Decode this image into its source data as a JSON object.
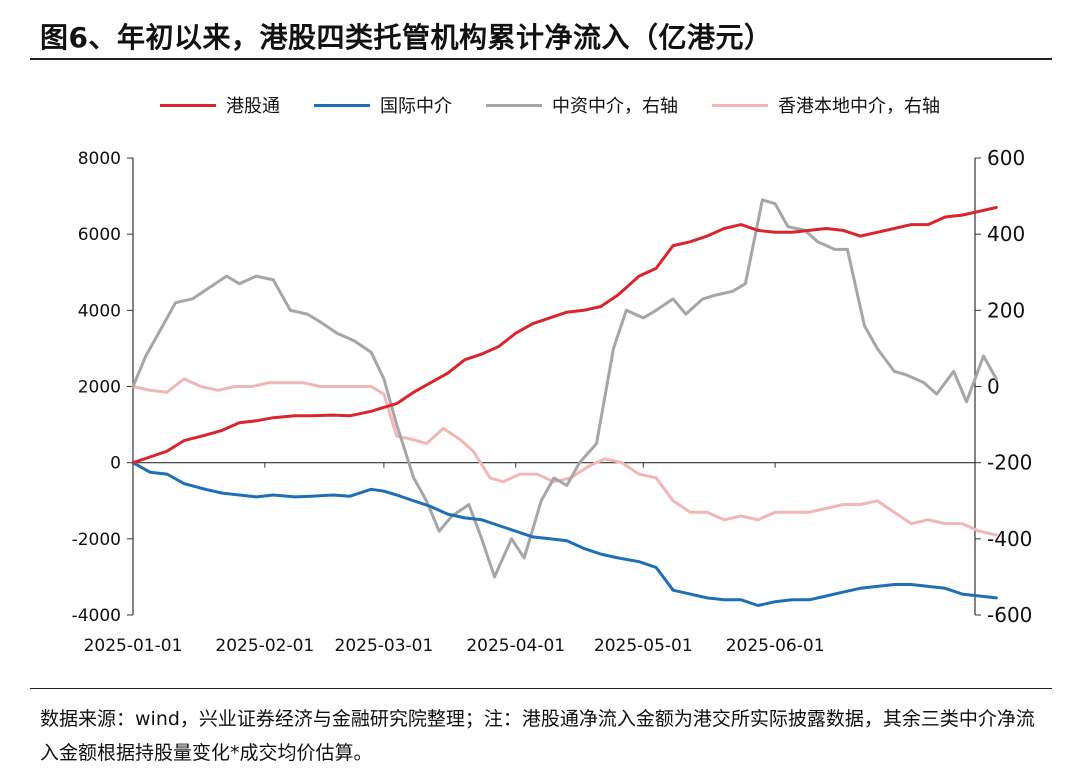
{
  "title": "图6、年初以来，港股四类托管机构累计净流入（亿港元）",
  "source": "数据来源：wind，兴业证券经济与金融研究院整理；注：港股通净流入金额为港交所实际披露数据，其余三类中介净流入金额根据持股量变化*成交均价估算。",
  "chart_data": {
    "type": "line",
    "title": "年初以来，港股四类托管机构累计净流入（亿港元）",
    "x_tick_labels": [
      "2025-01-01",
      "2025-02-01",
      "2025-03-01",
      "2025-04-01",
      "2025-05-01",
      "2025-06-01"
    ],
    "y_left": {
      "min": -4000,
      "max": 8000,
      "ticks": [
        8000,
        6000,
        4000,
        2000,
        0,
        -2000,
        -4000
      ]
    },
    "y_right": {
      "min": -600,
      "max": 600,
      "ticks": [
        600,
        400,
        200,
        0,
        -200,
        -400,
        -600
      ]
    },
    "grid": false,
    "legend_position": "top",
    "series": [
      {
        "name": "港股通",
        "axis": "left",
        "color": "#d9262c",
        "points": [
          [
            "2025-01-01",
            0
          ],
          [
            "2025-01-05",
            150
          ],
          [
            "2025-01-09",
            300
          ],
          [
            "2025-01-13",
            580
          ],
          [
            "2025-01-18",
            720
          ],
          [
            "2025-01-22",
            850
          ],
          [
            "2025-01-26",
            1050
          ],
          [
            "2025-01-30",
            1100
          ],
          [
            "2025-02-03",
            1180
          ],
          [
            "2025-02-08",
            1230
          ],
          [
            "2025-02-12",
            1230
          ],
          [
            "2025-02-17",
            1250
          ],
          [
            "2025-02-21",
            1230
          ],
          [
            "2025-02-26",
            1350
          ],
          [
            "2025-03-01",
            1450
          ],
          [
            "2025-03-04",
            1550
          ],
          [
            "2025-03-08",
            1850
          ],
          [
            "2025-03-12",
            2100
          ],
          [
            "2025-03-16",
            2350
          ],
          [
            "2025-03-20",
            2700
          ],
          [
            "2025-03-24",
            2850
          ],
          [
            "2025-03-28",
            3050
          ],
          [
            "2025-04-01",
            3400
          ],
          [
            "2025-04-05",
            3650
          ],
          [
            "2025-04-09",
            3800
          ],
          [
            "2025-04-13",
            3950
          ],
          [
            "2025-04-17",
            4000
          ],
          [
            "2025-04-21",
            4100
          ],
          [
            "2025-04-25",
            4400
          ],
          [
            "2025-04-30",
            4900
          ],
          [
            "2025-05-04",
            5100
          ],
          [
            "2025-05-08",
            5700
          ],
          [
            "2025-05-12",
            5800
          ],
          [
            "2025-05-16",
            5950
          ],
          [
            "2025-05-20",
            6150
          ],
          [
            "2025-05-24",
            6250
          ],
          [
            "2025-05-28",
            6100
          ],
          [
            "2025-06-01",
            6050
          ],
          [
            "2025-06-05",
            6050
          ],
          [
            "2025-06-09",
            6100
          ],
          [
            "2025-06-13",
            6150
          ],
          [
            "2025-06-17",
            6100
          ],
          [
            "2025-06-21",
            5950
          ],
          [
            "2025-06-25",
            6050
          ],
          [
            "2025-06-29",
            6150
          ],
          [
            "2025-07-03",
            6250
          ],
          [
            "2025-07-07",
            6250
          ],
          [
            "2025-07-11",
            6450
          ],
          [
            "2025-07-15",
            6500
          ],
          [
            "2025-07-19",
            6600
          ],
          [
            "2025-07-23",
            6700
          ]
        ]
      },
      {
        "name": "国际中介",
        "axis": "left",
        "color": "#1f6fb4",
        "points": [
          [
            "2025-01-01",
            0
          ],
          [
            "2025-01-05",
            -250
          ],
          [
            "2025-01-09",
            -300
          ],
          [
            "2025-01-13",
            -550
          ],
          [
            "2025-01-18",
            -700
          ],
          [
            "2025-01-22",
            -800
          ],
          [
            "2025-01-26",
            -850
          ],
          [
            "2025-01-30",
            -900
          ],
          [
            "2025-02-03",
            -850
          ],
          [
            "2025-02-08",
            -900
          ],
          [
            "2025-02-12",
            -880
          ],
          [
            "2025-02-17",
            -850
          ],
          [
            "2025-02-21",
            -880
          ],
          [
            "2025-02-26",
            -700
          ],
          [
            "2025-03-01",
            -750
          ],
          [
            "2025-03-04",
            -850
          ],
          [
            "2025-03-08",
            -1000
          ],
          [
            "2025-03-12",
            -1150
          ],
          [
            "2025-03-16",
            -1350
          ],
          [
            "2025-03-20",
            -1450
          ],
          [
            "2025-03-24",
            -1500
          ],
          [
            "2025-03-28",
            -1650
          ],
          [
            "2025-04-01",
            -1800
          ],
          [
            "2025-04-05",
            -1950
          ],
          [
            "2025-04-09",
            -2000
          ],
          [
            "2025-04-13",
            -2050
          ],
          [
            "2025-04-17",
            -2250
          ],
          [
            "2025-04-21",
            -2400
          ],
          [
            "2025-04-25",
            -2500
          ],
          [
            "2025-04-30",
            -2600
          ],
          [
            "2025-05-04",
            -2750
          ],
          [
            "2025-05-08",
            -3350
          ],
          [
            "2025-05-12",
            -3450
          ],
          [
            "2025-05-16",
            -3550
          ],
          [
            "2025-05-20",
            -3600
          ],
          [
            "2025-05-24",
            -3600
          ],
          [
            "2025-05-28",
            -3750
          ],
          [
            "2025-06-01",
            -3650
          ],
          [
            "2025-06-05",
            -3600
          ],
          [
            "2025-06-09",
            -3600
          ],
          [
            "2025-06-13",
            -3500
          ],
          [
            "2025-06-17",
            -3400
          ],
          [
            "2025-06-21",
            -3300
          ],
          [
            "2025-06-25",
            -3250
          ],
          [
            "2025-06-29",
            -3200
          ],
          [
            "2025-07-03",
            -3200
          ],
          [
            "2025-07-07",
            -3250
          ],
          [
            "2025-07-11",
            -3300
          ],
          [
            "2025-07-15",
            -3450
          ],
          [
            "2025-07-19",
            -3500
          ],
          [
            "2025-07-23",
            -3550
          ]
        ]
      },
      {
        "name": "中资中介，右轴",
        "axis": "right",
        "color": "#a6a6a6",
        "points": [
          [
            "2025-01-01",
            0
          ],
          [
            "2025-01-04",
            80
          ],
          [
            "2025-01-08",
            160
          ],
          [
            "2025-01-11",
            220
          ],
          [
            "2025-01-15",
            230
          ],
          [
            "2025-01-19",
            260
          ],
          [
            "2025-01-23",
            290
          ],
          [
            "2025-01-26",
            270
          ],
          [
            "2025-01-30",
            290
          ],
          [
            "2025-02-03",
            280
          ],
          [
            "2025-02-07",
            200
          ],
          [
            "2025-02-11",
            190
          ],
          [
            "2025-02-14",
            170
          ],
          [
            "2025-02-18",
            140
          ],
          [
            "2025-02-22",
            120
          ],
          [
            "2025-02-26",
            90
          ],
          [
            "2025-03-01",
            20
          ],
          [
            "2025-03-04",
            -100
          ],
          [
            "2025-03-08",
            -240
          ],
          [
            "2025-03-11",
            -300
          ],
          [
            "2025-03-14",
            -380
          ],
          [
            "2025-03-17",
            -340
          ],
          [
            "2025-03-21",
            -310
          ],
          [
            "2025-03-24",
            -400
          ],
          [
            "2025-03-27",
            -500
          ],
          [
            "2025-03-31",
            -400
          ],
          [
            "2025-04-03",
            -450
          ],
          [
            "2025-04-07",
            -300
          ],
          [
            "2025-04-10",
            -240
          ],
          [
            "2025-04-13",
            -260
          ],
          [
            "2025-04-16",
            -200
          ],
          [
            "2025-04-20",
            -150
          ],
          [
            "2025-04-24",
            100
          ],
          [
            "2025-04-27",
            200
          ],
          [
            "2025-05-01",
            180
          ],
          [
            "2025-05-04",
            200
          ],
          [
            "2025-05-08",
            230
          ],
          [
            "2025-05-11",
            190
          ],
          [
            "2025-05-15",
            230
          ],
          [
            "2025-05-18",
            240
          ],
          [
            "2025-05-22",
            250
          ],
          [
            "2025-05-25",
            270
          ],
          [
            "2025-05-29",
            490
          ],
          [
            "2025-06-01",
            480
          ],
          [
            "2025-06-04",
            420
          ],
          [
            "2025-06-08",
            410
          ],
          [
            "2025-06-11",
            380
          ],
          [
            "2025-06-15",
            360
          ],
          [
            "2025-06-18",
            360
          ],
          [
            "2025-06-22",
            160
          ],
          [
            "2025-06-25",
            100
          ],
          [
            "2025-06-29",
            40
          ],
          [
            "2025-07-02",
            30
          ],
          [
            "2025-07-06",
            10
          ],
          [
            "2025-07-09",
            -20
          ],
          [
            "2025-07-13",
            40
          ],
          [
            "2025-07-16",
            -40
          ],
          [
            "2025-07-20",
            80
          ],
          [
            "2025-07-23",
            20
          ]
        ]
      },
      {
        "name": "香港本地中介，右轴",
        "axis": "right",
        "color": "#f1b6b6",
        "points": [
          [
            "2025-01-01",
            0
          ],
          [
            "2025-01-05",
            -10
          ],
          [
            "2025-01-09",
            -15
          ],
          [
            "2025-01-13",
            20
          ],
          [
            "2025-01-17",
            0
          ],
          [
            "2025-01-21",
            -10
          ],
          [
            "2025-01-25",
            0
          ],
          [
            "2025-01-29",
            0
          ],
          [
            "2025-02-02",
            10
          ],
          [
            "2025-02-06",
            10
          ],
          [
            "2025-02-10",
            10
          ],
          [
            "2025-02-14",
            0
          ],
          [
            "2025-02-18",
            0
          ],
          [
            "2025-02-22",
            0
          ],
          [
            "2025-02-26",
            0
          ],
          [
            "2025-03-01",
            -20
          ],
          [
            "2025-03-04",
            -130
          ],
          [
            "2025-03-08",
            -140
          ],
          [
            "2025-03-11",
            -150
          ],
          [
            "2025-03-15",
            -110
          ],
          [
            "2025-03-19",
            -140
          ],
          [
            "2025-03-22",
            -170
          ],
          [
            "2025-03-26",
            -240
          ],
          [
            "2025-03-29",
            -250
          ],
          [
            "2025-04-02",
            -230
          ],
          [
            "2025-04-06",
            -230
          ],
          [
            "2025-04-10",
            -250
          ],
          [
            "2025-04-14",
            -240
          ],
          [
            "2025-04-18",
            -210
          ],
          [
            "2025-04-22",
            -190
          ],
          [
            "2025-04-26",
            -200
          ],
          [
            "2025-04-30",
            -230
          ],
          [
            "2025-05-04",
            -240
          ],
          [
            "2025-05-08",
            -300
          ],
          [
            "2025-05-12",
            -330
          ],
          [
            "2025-05-16",
            -330
          ],
          [
            "2025-05-20",
            -350
          ],
          [
            "2025-05-24",
            -340
          ],
          [
            "2025-05-28",
            -350
          ],
          [
            "2025-06-01",
            -330
          ],
          [
            "2025-06-05",
            -330
          ],
          [
            "2025-06-09",
            -330
          ],
          [
            "2025-06-13",
            -320
          ],
          [
            "2025-06-17",
            -310
          ],
          [
            "2025-06-21",
            -310
          ],
          [
            "2025-06-25",
            -300
          ],
          [
            "2025-06-29",
            -330
          ],
          [
            "2025-07-03",
            -360
          ],
          [
            "2025-07-07",
            -350
          ],
          [
            "2025-07-11",
            -360
          ],
          [
            "2025-07-15",
            -360
          ],
          [
            "2025-07-19",
            -380
          ],
          [
            "2025-07-23",
            -390
          ]
        ]
      }
    ]
  }
}
